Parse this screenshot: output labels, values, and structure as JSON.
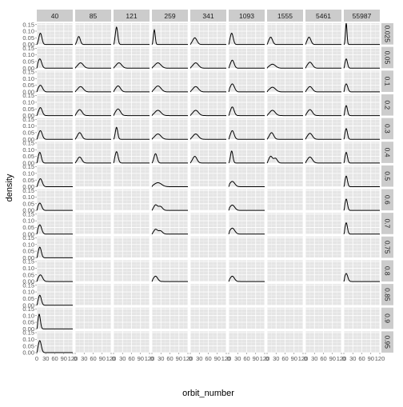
{
  "colors": {
    "panel_bg": "#e5e5e5",
    "grid_major": "#ffffff",
    "grid_minor": "#f2f2f2",
    "strip_bg": "#cccccc",
    "line": "#000000",
    "tick_text": "#555555"
  },
  "chart_data": {
    "type": "line",
    "chart_kind": "faceted density (facet_grid)",
    "xlabel": "orbit_number",
    "ylabel": "density",
    "xlim": [
      0,
      120
    ],
    "ylim": [
      0,
      0.16
    ],
    "x_tick_labels": [
      "0",
      "30",
      "60",
      "90",
      "120"
    ],
    "y_tick_labels": [
      "0.00",
      "0.05",
      "0.10",
      "0.15"
    ],
    "grid": true,
    "columns": [
      "40",
      "85",
      "121",
      "259",
      "341",
      "1093",
      "1555",
      "5461",
      "55987"
    ],
    "rows": [
      "0.025",
      "0.05",
      "0.1",
      "0.2",
      "0.3",
      "0.4",
      "0.5",
      "0.6",
      "0.7",
      "0.75",
      "0.8",
      "0.85",
      "0.9",
      "0.95"
    ],
    "panels": [
      {
        "row": 0,
        "col": 0,
        "peaks": [
          [
            12,
            0.085,
            5
          ]
        ]
      },
      {
        "row": 0,
        "col": 1,
        "peaks": [
          [
            12,
            0.06,
            5
          ]
        ]
      },
      {
        "row": 0,
        "col": 2,
        "peaks": [
          [
            10,
            0.13,
            4
          ]
        ]
      },
      {
        "row": 0,
        "col": 3,
        "peaks": [
          [
            8,
            0.11,
            3
          ]
        ]
      },
      {
        "row": 0,
        "col": 4,
        "peaks": [
          [
            15,
            0.05,
            7
          ]
        ]
      },
      {
        "row": 0,
        "col": 5,
        "peaks": [
          [
            10,
            0.085,
            5
          ]
        ]
      },
      {
        "row": 0,
        "col": 6,
        "peaks": [
          [
            12,
            0.055,
            6
          ]
        ]
      },
      {
        "row": 0,
        "col": 7,
        "peaks": [
          [
            12,
            0.055,
            6
          ]
        ]
      },
      {
        "row": 0,
        "col": 8,
        "peaks": [
          [
            8,
            0.16,
            2.5
          ]
        ]
      },
      {
        "row": 1,
        "col": 0,
        "peaks": [
          [
            10,
            0.07,
            6
          ]
        ]
      },
      {
        "row": 1,
        "col": 1,
        "peaks": [
          [
            18,
            0.04,
            9
          ]
        ]
      },
      {
        "row": 1,
        "col": 2,
        "peaks": [
          [
            18,
            0.04,
            9
          ]
        ]
      },
      {
        "row": 1,
        "col": 3,
        "peaks": [
          [
            20,
            0.04,
            10
          ]
        ]
      },
      {
        "row": 1,
        "col": 4,
        "peaks": [
          [
            18,
            0.04,
            9
          ]
        ]
      },
      {
        "row": 1,
        "col": 5,
        "peaks": [
          [
            12,
            0.06,
            6
          ]
        ]
      },
      {
        "row": 1,
        "col": 6,
        "peaks": [
          [
            18,
            0.03,
            10
          ]
        ]
      },
      {
        "row": 1,
        "col": 7,
        "peaks": [
          [
            15,
            0.045,
            8
          ]
        ]
      },
      {
        "row": 1,
        "col": 8,
        "peaks": [
          [
            8,
            0.07,
            4
          ]
        ]
      },
      {
        "row": 2,
        "col": 0,
        "peaks": [
          [
            12,
            0.05,
            7
          ]
        ]
      },
      {
        "row": 2,
        "col": 1,
        "peaks": [
          [
            18,
            0.04,
            9
          ]
        ]
      },
      {
        "row": 2,
        "col": 2,
        "peaks": [
          [
            15,
            0.045,
            8
          ]
        ]
      },
      {
        "row": 2,
        "col": 3,
        "peaks": [
          [
            20,
            0.045,
            10
          ]
        ]
      },
      {
        "row": 2,
        "col": 4,
        "peaks": [
          [
            18,
            0.04,
            9
          ]
        ]
      },
      {
        "row": 2,
        "col": 5,
        "peaks": [
          [
            12,
            0.06,
            7
          ]
        ]
      },
      {
        "row": 2,
        "col": 6,
        "peaks": [
          [
            18,
            0.035,
            10
          ]
        ]
      },
      {
        "row": 2,
        "col": 7,
        "peaks": [
          [
            15,
            0.04,
            8
          ]
        ]
      },
      {
        "row": 2,
        "col": 8,
        "peaks": [
          [
            8,
            0.06,
            5
          ]
        ]
      },
      {
        "row": 3,
        "col": 0,
        "peaks": [
          [
            12,
            0.06,
            6
          ]
        ]
      },
      {
        "row": 3,
        "col": 1,
        "peaks": [
          [
            15,
            0.045,
            8
          ]
        ]
      },
      {
        "row": 3,
        "col": 2,
        "peaks": [
          [
            15,
            0.05,
            8
          ]
        ]
      },
      {
        "row": 3,
        "col": 3,
        "peaks": [
          [
            20,
            0.04,
            10
          ]
        ]
      },
      {
        "row": 3,
        "col": 4,
        "peaks": [
          [
            18,
            0.04,
            9
          ]
        ]
      },
      {
        "row": 3,
        "col": 5,
        "peaks": [
          [
            12,
            0.065,
            6
          ]
        ]
      },
      {
        "row": 3,
        "col": 6,
        "peaks": [
          [
            18,
            0.04,
            9
          ]
        ]
      },
      {
        "row": 3,
        "col": 7,
        "peaks": [
          [
            15,
            0.045,
            8
          ]
        ]
      },
      {
        "row": 3,
        "col": 8,
        "peaks": [
          [
            8,
            0.075,
            4
          ]
        ]
      },
      {
        "row": 4,
        "col": 0,
        "peaks": [
          [
            12,
            0.065,
            6
          ]
        ]
      },
      {
        "row": 4,
        "col": 1,
        "peaks": [
          [
            15,
            0.05,
            7
          ]
        ]
      },
      {
        "row": 4,
        "col": 2,
        "peaks": [
          [
            10,
            0.09,
            4
          ]
        ]
      },
      {
        "row": 4,
        "col": 3,
        "peaks": [
          [
            20,
            0.04,
            10
          ]
        ]
      },
      {
        "row": 4,
        "col": 4,
        "peaks": [
          [
            18,
            0.04,
            9
          ]
        ]
      },
      {
        "row": 4,
        "col": 5,
        "peaks": [
          [
            12,
            0.065,
            6
          ]
        ]
      },
      {
        "row": 4,
        "col": 6,
        "peaks": [
          [
            15,
            0.05,
            7
          ]
        ]
      },
      {
        "row": 4,
        "col": 7,
        "peaks": [
          [
            15,
            0.045,
            8
          ]
        ]
      },
      {
        "row": 4,
        "col": 8,
        "peaks": [
          [
            8,
            0.08,
            4
          ]
        ]
      },
      {
        "row": 5,
        "col": 0,
        "peaks": [
          [
            10,
            0.08,
            5
          ]
        ]
      },
      {
        "row": 5,
        "col": 1,
        "peaks": [
          [
            15,
            0.045,
            7
          ]
        ]
      },
      {
        "row": 5,
        "col": 2,
        "peaks": [
          [
            10,
            0.085,
            5
          ]
        ]
      },
      {
        "row": 5,
        "col": 3,
        "peaks": [
          [
            12,
            0.07,
            5
          ]
        ]
      },
      {
        "row": 5,
        "col": 4,
        "peaks": [
          [
            15,
            0.05,
            7
          ]
        ]
      },
      {
        "row": 5,
        "col": 5,
        "peaks": [
          [
            10,
            0.09,
            4
          ]
        ]
      },
      {
        "row": 5,
        "col": 6,
        "peaks": [
          [
            12,
            0.05,
            6
          ],
          [
            28,
            0.035,
            6
          ]
        ]
      },
      {
        "row": 5,
        "col": 7,
        "peaks": [
          [
            15,
            0.045,
            8
          ]
        ]
      },
      {
        "row": 5,
        "col": 8,
        "peaks": [
          [
            8,
            0.08,
            4
          ]
        ]
      },
      {
        "row": 6,
        "col": 0,
        "peaks": [
          [
            12,
            0.06,
            6
          ]
        ]
      },
      {
        "row": 6,
        "col": 3,
        "peaks": [
          [
            20,
            0.03,
            12
          ]
        ]
      },
      {
        "row": 6,
        "col": 5,
        "peaks": [
          [
            12,
            0.04,
            8
          ]
        ]
      },
      {
        "row": 6,
        "col": 8,
        "peaks": [
          [
            8,
            0.08,
            4
          ]
        ]
      },
      {
        "row": 7,
        "col": 0,
        "peaks": [
          [
            10,
            0.055,
            6
          ]
        ]
      },
      {
        "row": 7,
        "col": 3,
        "peaks": [
          [
            12,
            0.04,
            6
          ],
          [
            28,
            0.03,
            7
          ]
        ]
      },
      {
        "row": 7,
        "col": 5,
        "peaks": [
          [
            12,
            0.04,
            8
          ]
        ]
      },
      {
        "row": 7,
        "col": 8,
        "peaks": [
          [
            8,
            0.085,
            4
          ]
        ]
      },
      {
        "row": 8,
        "col": 0,
        "peaks": [
          [
            10,
            0.07,
            6
          ]
        ]
      },
      {
        "row": 8,
        "col": 3,
        "peaks": [
          [
            12,
            0.035,
            6
          ],
          [
            28,
            0.025,
            7
          ]
        ]
      },
      {
        "row": 8,
        "col": 5,
        "peaks": [
          [
            12,
            0.045,
            8
          ]
        ]
      },
      {
        "row": 8,
        "col": 8,
        "peaks": [
          [
            8,
            0.085,
            4
          ]
        ]
      },
      {
        "row": 9,
        "col": 0,
        "peaks": [
          [
            10,
            0.08,
            5
          ]
        ]
      },
      {
        "row": 10,
        "col": 0,
        "peaks": [
          [
            12,
            0.05,
            7
          ]
        ]
      },
      {
        "row": 10,
        "col": 3,
        "peaks": [
          [
            12,
            0.04,
            7
          ]
        ]
      },
      {
        "row": 10,
        "col": 5,
        "peaks": [
          [
            12,
            0.04,
            7
          ]
        ]
      },
      {
        "row": 10,
        "col": 8,
        "peaks": [
          [
            8,
            0.06,
            5
          ]
        ]
      },
      {
        "row": 11,
        "col": 0,
        "peaks": [
          [
            10,
            0.075,
            5
          ]
        ]
      },
      {
        "row": 12,
        "col": 0,
        "peaks": [
          [
            8,
            0.11,
            4
          ]
        ]
      },
      {
        "row": 13,
        "col": 0,
        "peaks": [
          [
            10,
            0.09,
            5
          ]
        ]
      }
    ]
  }
}
